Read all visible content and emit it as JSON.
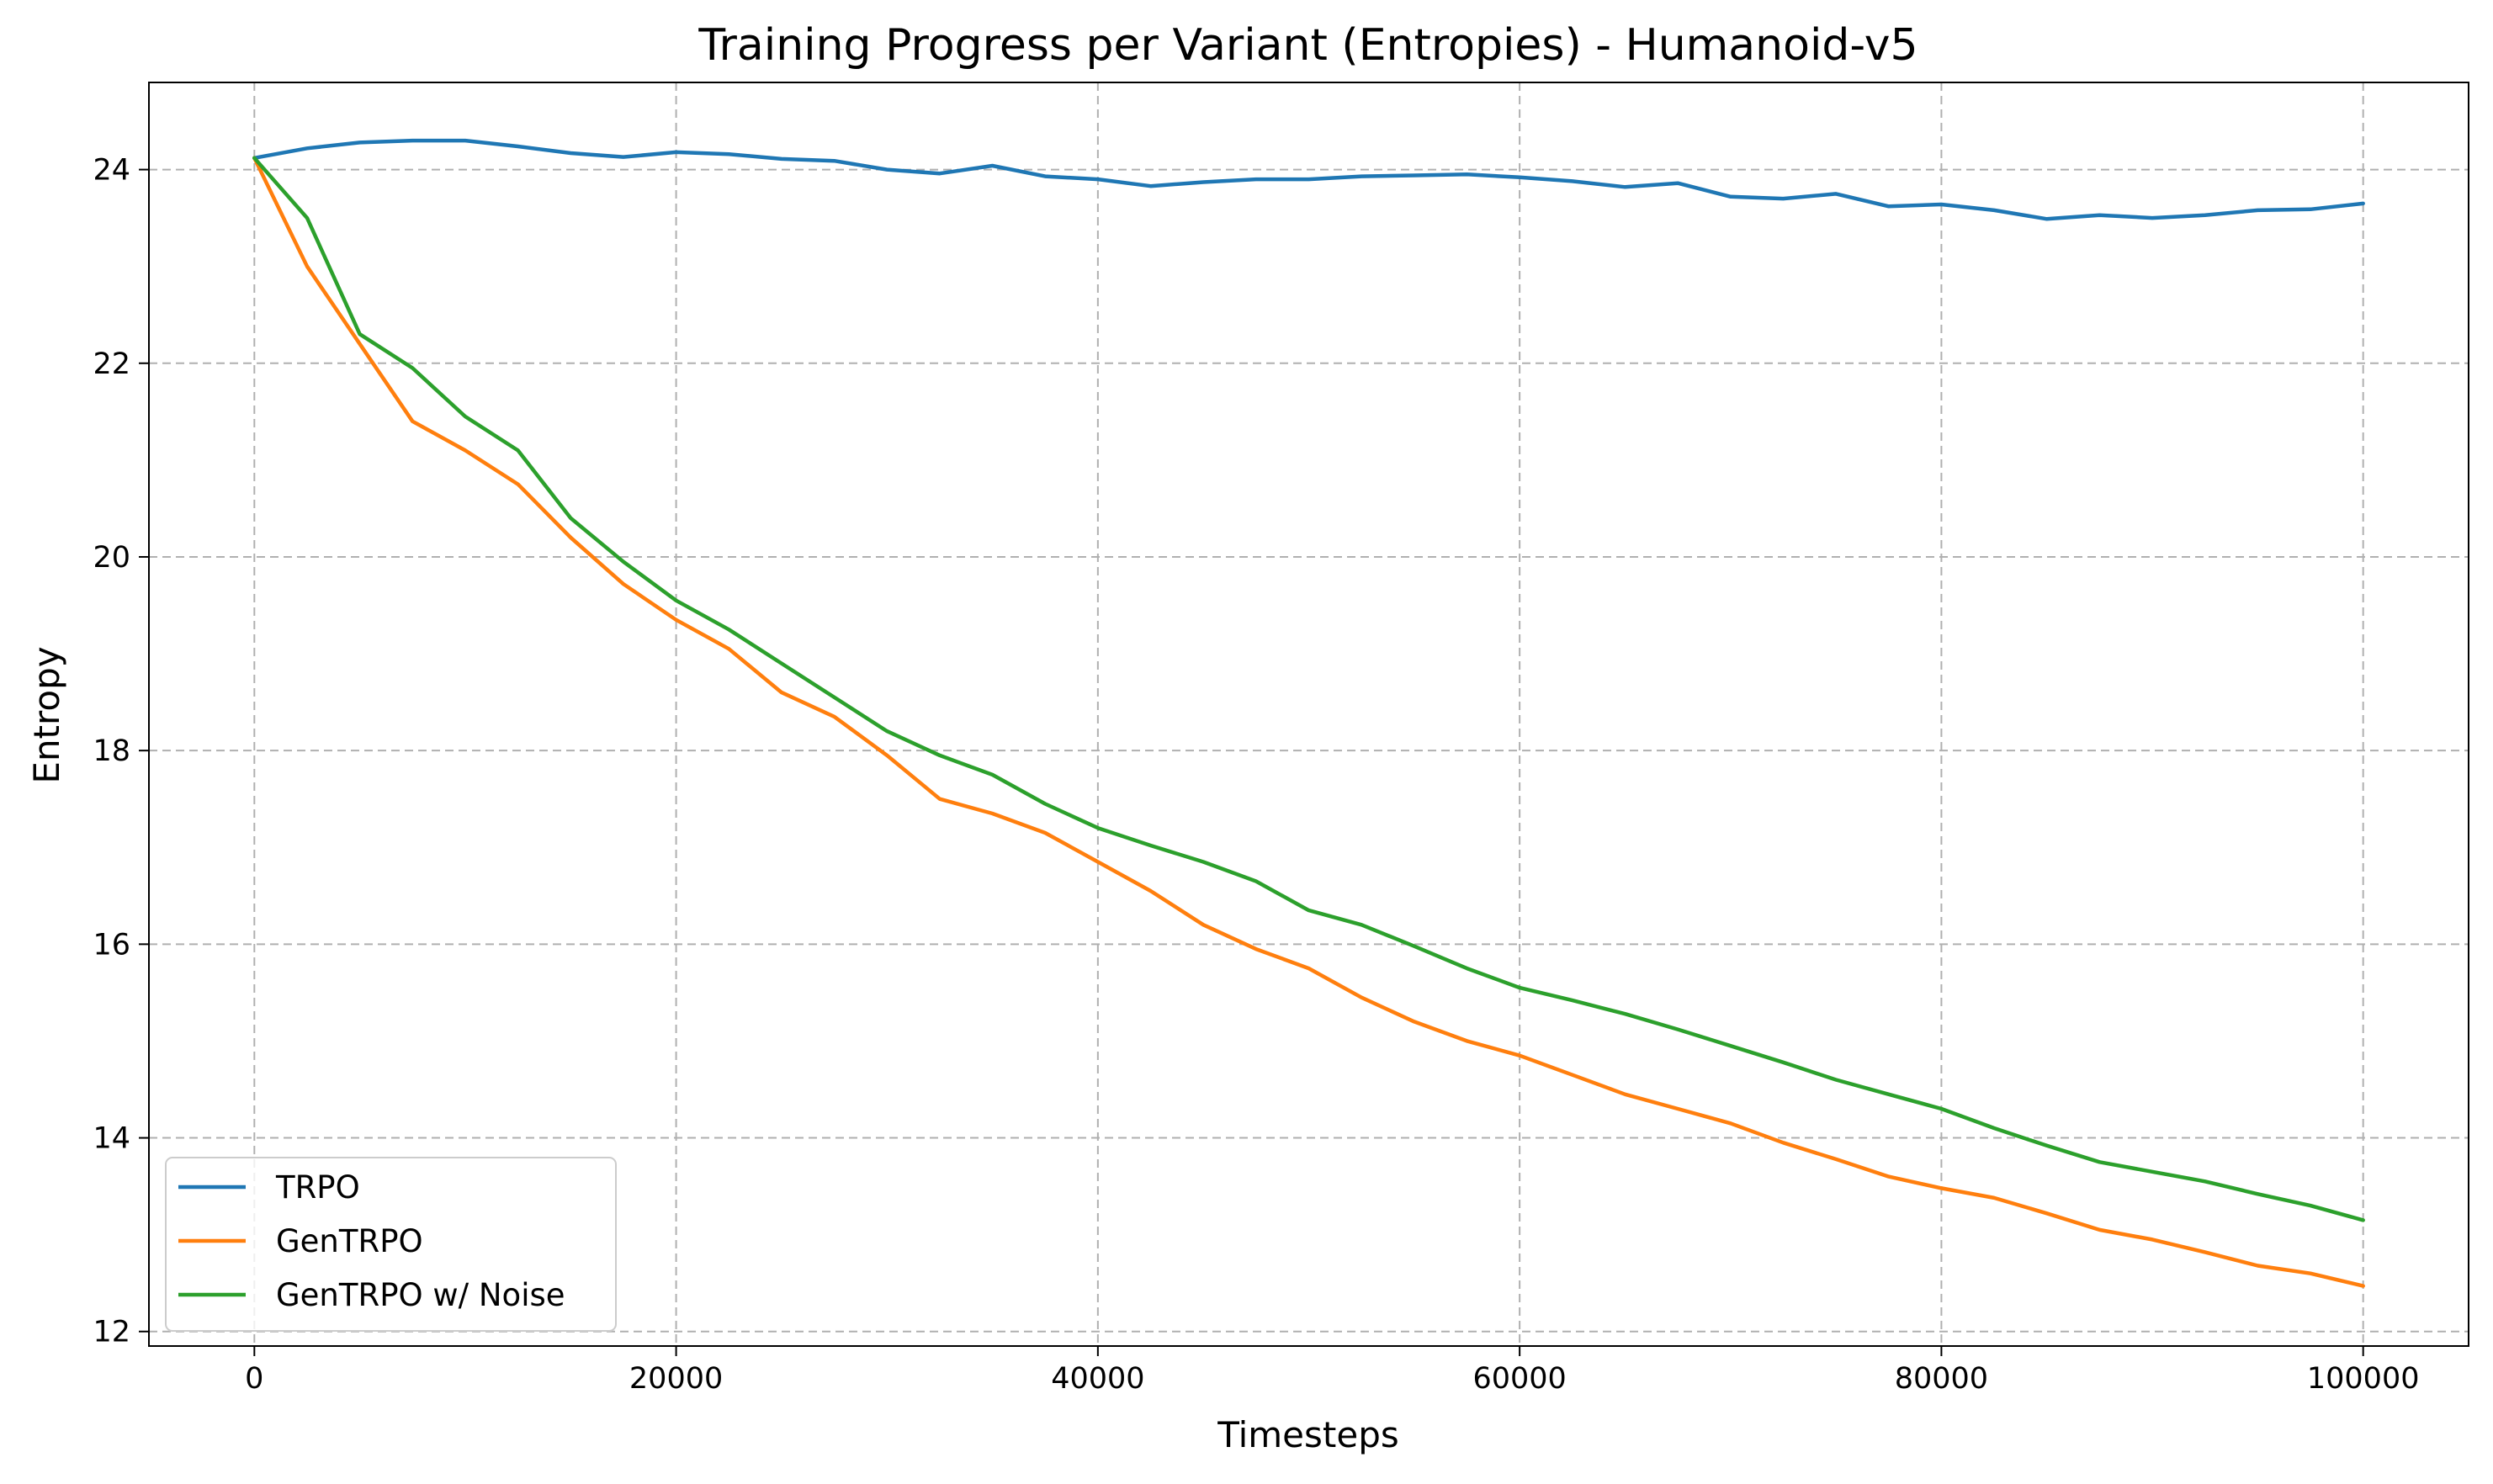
{
  "chart_data": {
    "type": "line",
    "title": "Training Progress per Variant (Entropies) - Humanoid-v5",
    "xlabel": "Timesteps",
    "ylabel": "Entropy",
    "xlim": [
      -5000,
      105000
    ],
    "ylim": [
      11.85,
      24.9
    ],
    "xticks": [
      0,
      20000,
      40000,
      60000,
      80000,
      100000
    ],
    "yticks": [
      12,
      14,
      16,
      18,
      20,
      22,
      24
    ],
    "grid": true,
    "legend_position": "lower-left",
    "x": [
      0,
      2500,
      5000,
      7500,
      10000,
      12500,
      15000,
      17500,
      20000,
      22500,
      25000,
      27500,
      30000,
      32500,
      35000,
      37500,
      40000,
      42500,
      45000,
      47500,
      50000,
      52500,
      55000,
      57500,
      60000,
      62500,
      65000,
      67500,
      70000,
      72500,
      75000,
      77500,
      80000,
      82500,
      85000,
      87500,
      90000,
      92500,
      95000,
      97500,
      100000
    ],
    "series": [
      {
        "name": "TRPO",
        "color": "#1f77b4",
        "values": [
          24.12,
          24.22,
          24.28,
          24.3,
          24.3,
          24.24,
          24.17,
          24.13,
          24.18,
          24.16,
          24.11,
          24.09,
          24.0,
          23.96,
          24.04,
          23.93,
          23.9,
          23.83,
          23.87,
          23.9,
          23.9,
          23.93,
          23.94,
          23.95,
          23.92,
          23.88,
          23.82,
          23.86,
          23.72,
          23.7,
          23.75,
          23.62,
          23.64,
          23.58,
          23.49,
          23.53,
          23.5,
          23.53,
          23.58,
          23.59,
          23.65
        ]
      },
      {
        "name": "GenTRPO",
        "color": "#ff7f0e",
        "values": [
          24.12,
          23.0,
          22.2,
          21.4,
          21.1,
          20.75,
          20.2,
          19.72,
          19.35,
          19.05,
          18.6,
          18.35,
          17.95,
          17.5,
          17.35,
          17.15,
          16.85,
          16.55,
          16.2,
          15.95,
          15.75,
          15.45,
          15.2,
          15.0,
          14.85,
          14.65,
          14.45,
          14.3,
          14.15,
          13.95,
          13.78,
          13.6,
          13.48,
          13.38,
          13.22,
          13.05,
          12.95,
          12.82,
          12.68,
          12.6,
          12.47
        ]
      },
      {
        "name": "GenTRPO w/ Noise",
        "color": "#2ca02c",
        "values": [
          24.12,
          23.5,
          22.3,
          21.95,
          21.45,
          21.1,
          20.4,
          19.95,
          19.55,
          19.25,
          18.9,
          18.55,
          18.2,
          17.95,
          17.75,
          17.45,
          17.2,
          17.02,
          16.85,
          16.65,
          16.35,
          16.2,
          15.98,
          15.75,
          15.55,
          15.42,
          15.28,
          15.12,
          14.95,
          14.78,
          14.6,
          14.45,
          14.3,
          14.1,
          13.92,
          13.75,
          13.65,
          13.55,
          13.42,
          13.3,
          13.15
        ]
      }
    ]
  }
}
